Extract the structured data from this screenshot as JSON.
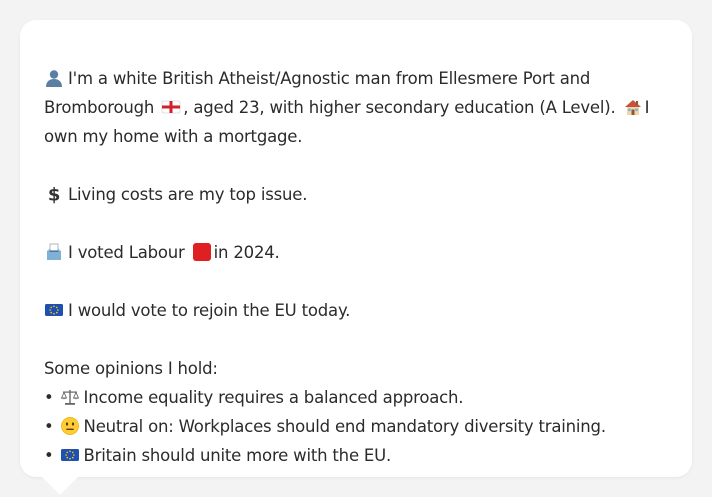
{
  "profile": {
    "intro_line1": "I'm a white British Atheist/Agnostic man from Ellesmere Port and",
    "intro_line2a": "Bromborough",
    "intro_line2b": ", aged 23, with higher secondary education (A Level).",
    "intro_line2c": "I",
    "intro_line3": "own my home with a mortgage.",
    "issue": "Living costs are my top issue.",
    "vote_a": "I voted Labour",
    "vote_b": "in 2024.",
    "eu": "I would vote to rejoin the EU today.",
    "opinions_heading": "Some opinions I hold:",
    "opinions": [
      {
        "bullet": "•",
        "icon": "balance-scale-icon",
        "text": "Income equality requires a balanced approach."
      },
      {
        "bullet": "•",
        "icon": "neutral-face-icon",
        "text": "Neutral on: Workplaces should end mandatory diversity training."
      },
      {
        "bullet": "•",
        "icon": "eu-flag-icon",
        "text": "Britain should unite more with the EU."
      }
    ]
  },
  "colors": {
    "labour_red": "#e02020",
    "eu_blue": "#1f4fb0",
    "england_red": "#d21f2b"
  }
}
